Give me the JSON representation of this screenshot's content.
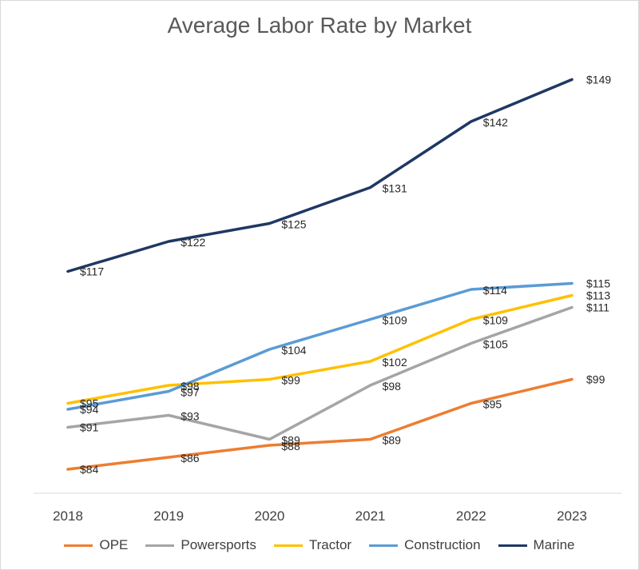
{
  "chart_data": {
    "type": "line",
    "title": "Average Labor Rate by Market",
    "xlabel": "",
    "ylabel": "",
    "categories": [
      "2018",
      "2019",
      "2020",
      "2021",
      "2022",
      "2023"
    ],
    "ylim": [
      70,
      160
    ],
    "grid": false,
    "legend_position": "bottom",
    "series": [
      {
        "name": "OPE",
        "color": "#ED7D31",
        "values": [
          84,
          86,
          88,
          89,
          95,
          99
        ],
        "labels": [
          "$84",
          "$86",
          "$88",
          "$89",
          "$95",
          "$99"
        ]
      },
      {
        "name": "Powersports",
        "color": "#A5A5A5",
        "values": [
          91,
          93,
          89,
          98,
          105,
          111
        ],
        "labels": [
          "$91",
          "$93",
          "$89",
          "$98",
          "$105",
          "$111"
        ]
      },
      {
        "name": "Tractor",
        "color": "#FFC000",
        "values": [
          95,
          98,
          99,
          102,
          109,
          113
        ],
        "labels": [
          "$95",
          "$98",
          "$99",
          "$102",
          "$109",
          "$113"
        ]
      },
      {
        "name": "Construction",
        "color": "#5B9BD5",
        "values": [
          94,
          97,
          104,
          109,
          114,
          115
        ],
        "labels": [
          "$94",
          "$97",
          "$104",
          "$109",
          "$114",
          "$115"
        ]
      },
      {
        "name": "Marine",
        "color": "#1F3864",
        "values": [
          117,
          122,
          125,
          131,
          142,
          149
        ],
        "labels": [
          "$117",
          "$122",
          "$125",
          "$131",
          "$142",
          "$149"
        ]
      }
    ]
  }
}
